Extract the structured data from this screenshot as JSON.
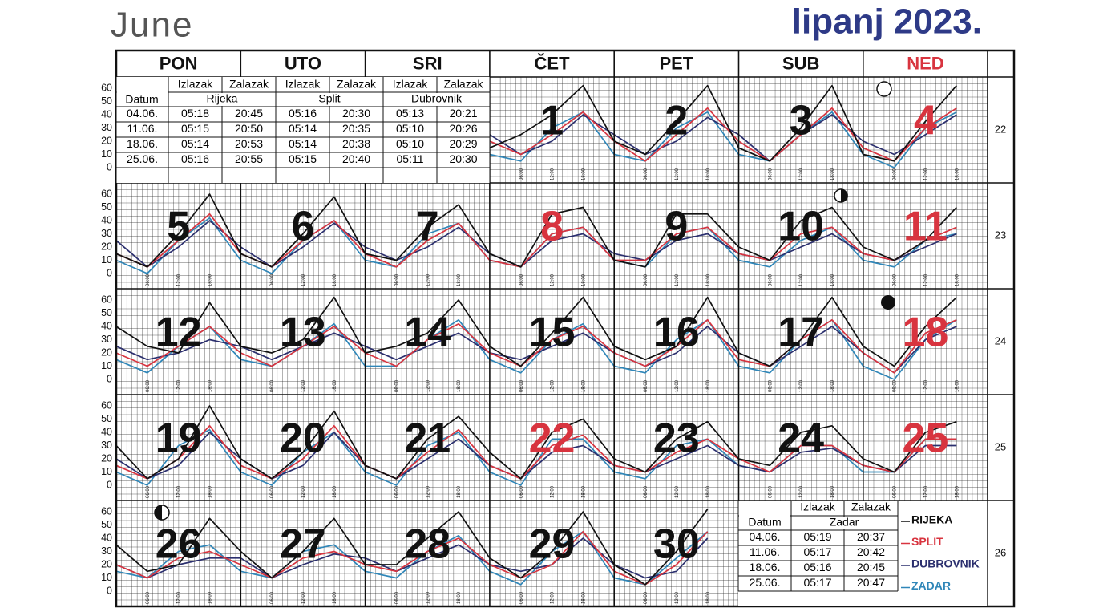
{
  "header": {
    "month": "June",
    "title": "lipanj 2023."
  },
  "weekdays": [
    "PON",
    "UTO",
    "SRI",
    "ČET",
    "PET",
    "SUB",
    "NED"
  ],
  "red_color": "#d8343f",
  "weeks": [
    {
      "number": 22,
      "days": [
        null,
        null,
        null,
        {
          "n": 1
        },
        {
          "n": 2
        },
        {
          "n": 3
        },
        {
          "n": 4,
          "red": true
        }
      ]
    },
    {
      "number": 23,
      "days": [
        {
          "n": 5
        },
        {
          "n": 6
        },
        {
          "n": 7
        },
        {
          "n": 8,
          "red": true
        },
        {
          "n": 9
        },
        {
          "n": 10
        },
        {
          "n": 11,
          "red": true
        }
      ]
    },
    {
      "number": 24,
      "days": [
        {
          "n": 12
        },
        {
          "n": 13
        },
        {
          "n": 14
        },
        {
          "n": 15
        },
        {
          "n": 16
        },
        {
          "n": 17
        },
        {
          "n": 18,
          "red": true
        }
      ]
    },
    {
      "number": 25,
      "days": [
        {
          "n": 19
        },
        {
          "n": 20
        },
        {
          "n": 21
        },
        {
          "n": 22,
          "red": true
        },
        {
          "n": 23
        },
        {
          "n": 24
        },
        {
          "n": 25,
          "red": true
        }
      ]
    },
    {
      "number": 26,
      "days": [
        {
          "n": 26
        },
        {
          "n": 27
        },
        {
          "n": 28
        },
        {
          "n": 29
        },
        {
          "n": 30
        },
        null,
        null
      ]
    }
  ],
  "yticks": [
    60,
    50,
    40,
    30,
    20,
    10,
    0
  ],
  "ylim": [
    -11.5,
    68.5
  ],
  "time_ticks": [
    "06:00",
    "12:00",
    "18:00"
  ],
  "tides": {
    "series": [
      {
        "name": "RIJEKA",
        "color": "#111111",
        "values": [
          15,
          25,
          40,
          62,
          20,
          10,
          35,
          62,
          15,
          5,
          30,
          62,
          10,
          5,
          35,
          62,
          15,
          5,
          30,
          60,
          15,
          5,
          30,
          58,
          15,
          10,
          35,
          52,
          15,
          5,
          45,
          50,
          10,
          5,
          45,
          45,
          20,
          10,
          40,
          50,
          20,
          10,
          25,
          50,
          40,
          25,
          20,
          58,
          25,
          20,
          30,
          62,
          20,
          25,
          35,
          60,
          25,
          10,
          35,
          62,
          25,
          15,
          25,
          62,
          20,
          10,
          30,
          62,
          25,
          10,
          40,
          62,
          30,
          5,
          20,
          60,
          20,
          5,
          25,
          56,
          15,
          5,
          35,
          52,
          25,
          5,
          40,
          50,
          20,
          10,
          35,
          48,
          20,
          15,
          40,
          45,
          20,
          10,
          40,
          48,
          35,
          15,
          20,
          55,
          30,
          10,
          30,
          55,
          20,
          20,
          40,
          60,
          25,
          10,
          30,
          60,
          20,
          5,
          30,
          62
        ]
      },
      {
        "name": "SPLIT",
        "color": "#d8343f",
        "values": [
          20,
          10,
          25,
          42,
          20,
          5,
          25,
          45,
          20,
          5,
          25,
          45,
          15,
          5,
          30,
          45,
          15,
          5,
          25,
          45,
          15,
          5,
          25,
          40,
          15,
          5,
          25,
          38,
          10,
          5,
          30,
          35,
          10,
          10,
          30,
          35,
          15,
          10,
          30,
          35,
          15,
          10,
          25,
          35,
          20,
          10,
          25,
          40,
          20,
          10,
          25,
          40,
          20,
          10,
          30,
          42,
          20,
          10,
          30,
          40,
          20,
          10,
          25,
          45,
          15,
          10,
          30,
          45,
          20,
          5,
          35,
          45,
          15,
          5,
          20,
          45,
          15,
          5,
          20,
          45,
          15,
          5,
          25,
          42,
          15,
          5,
          30,
          38,
          15,
          10,
          25,
          35,
          20,
          10,
          30,
          30,
          15,
          10,
          35,
          35,
          20,
          10,
          25,
          30,
          20,
          10,
          25,
          30,
          20,
          15,
          30,
          40,
          20,
          10,
          20,
          45,
          15,
          5,
          20,
          45
        ]
      },
      {
        "name": "DUBROVNIK",
        "color": "#2b2f6e",
        "values": [
          25,
          10,
          20,
          40,
          25,
          10,
          20,
          38,
          25,
          5,
          25,
          40,
          20,
          10,
          25,
          40,
          25,
          5,
          20,
          40,
          20,
          5,
          20,
          38,
          20,
          10,
          20,
          35,
          15,
          5,
          25,
          30,
          15,
          10,
          25,
          30,
          15,
          10,
          20,
          30,
          15,
          10,
          20,
          30,
          25,
          15,
          20,
          30,
          25,
          15,
          25,
          35,
          25,
          15,
          25,
          35,
          20,
          15,
          25,
          35,
          20,
          10,
          20,
          40,
          20,
          10,
          25,
          40,
          20,
          5,
          30,
          40,
          20,
          5,
          15,
          40,
          20,
          5,
          15,
          40,
          15,
          5,
          20,
          35,
          15,
          5,
          25,
          30,
          15,
          10,
          20,
          30,
          15,
          10,
          25,
          28,
          15,
          10,
          30,
          30,
          20,
          10,
          20,
          25,
          25,
          10,
          20,
          28,
          25,
          15,
          25,
          35,
          20,
          15,
          20,
          40,
          20,
          10,
          15,
          40
        ]
      },
      {
        "name": "ZADAR",
        "color": "#2f86b8",
        "values": [
          10,
          5,
          30,
          42,
          10,
          5,
          30,
          42,
          10,
          5,
          25,
          42,
          10,
          0,
          30,
          42,
          10,
          0,
          25,
          42,
          10,
          0,
          25,
          40,
          10,
          5,
          30,
          38,
          10,
          5,
          30,
          35,
          10,
          5,
          30,
          35,
          10,
          5,
          25,
          35,
          10,
          5,
          25,
          30,
          15,
          5,
          25,
          40,
          15,
          10,
          25,
          42,
          10,
          10,
          30,
          45,
          15,
          5,
          30,
          42,
          10,
          5,
          30,
          45,
          10,
          5,
          30,
          45,
          10,
          0,
          30,
          45,
          10,
          0,
          30,
          42,
          10,
          0,
          25,
          40,
          10,
          0,
          30,
          40,
          10,
          0,
          35,
          35,
          10,
          5,
          30,
          35,
          15,
          10,
          30,
          30,
          10,
          10,
          35,
          35,
          15,
          10,
          30,
          35,
          15,
          10,
          30,
          35,
          15,
          10,
          30,
          42,
          15,
          5,
          30,
          45,
          10,
          5,
          25,
          45
        ]
      }
    ]
  },
  "sun_table": {
    "datum": "Datum",
    "headers": [
      "Izlazak",
      "Zalazak"
    ],
    "cities": [
      "Rijeka",
      "Split",
      "Dubrovnik"
    ],
    "rows": [
      [
        "04.06.",
        "05:18",
        "20:45",
        "05:16",
        "20:30",
        "05:13",
        "20:21"
      ],
      [
        "11.06.",
        "05:15",
        "20:50",
        "05:14",
        "20:35",
        "05:10",
        "20:26"
      ],
      [
        "18.06.",
        "05:14",
        "20:53",
        "05:14",
        "20:38",
        "05:10",
        "20:29"
      ],
      [
        "25.06.",
        "05:16",
        "20:55",
        "05:15",
        "20:40",
        "05:11",
        "20:30"
      ]
    ]
  },
  "zadar_table": {
    "datum": "Datum",
    "headers": [
      "Izlazak",
      "Zalazak"
    ],
    "city": "Zadar",
    "rows": [
      [
        "04.06.",
        "05:19",
        "20:37"
      ],
      [
        "11.06.",
        "05:17",
        "20:42"
      ],
      [
        "18.06.",
        "05:16",
        "20:45"
      ],
      [
        "25.06.",
        "05:17",
        "20:47"
      ]
    ]
  }
}
